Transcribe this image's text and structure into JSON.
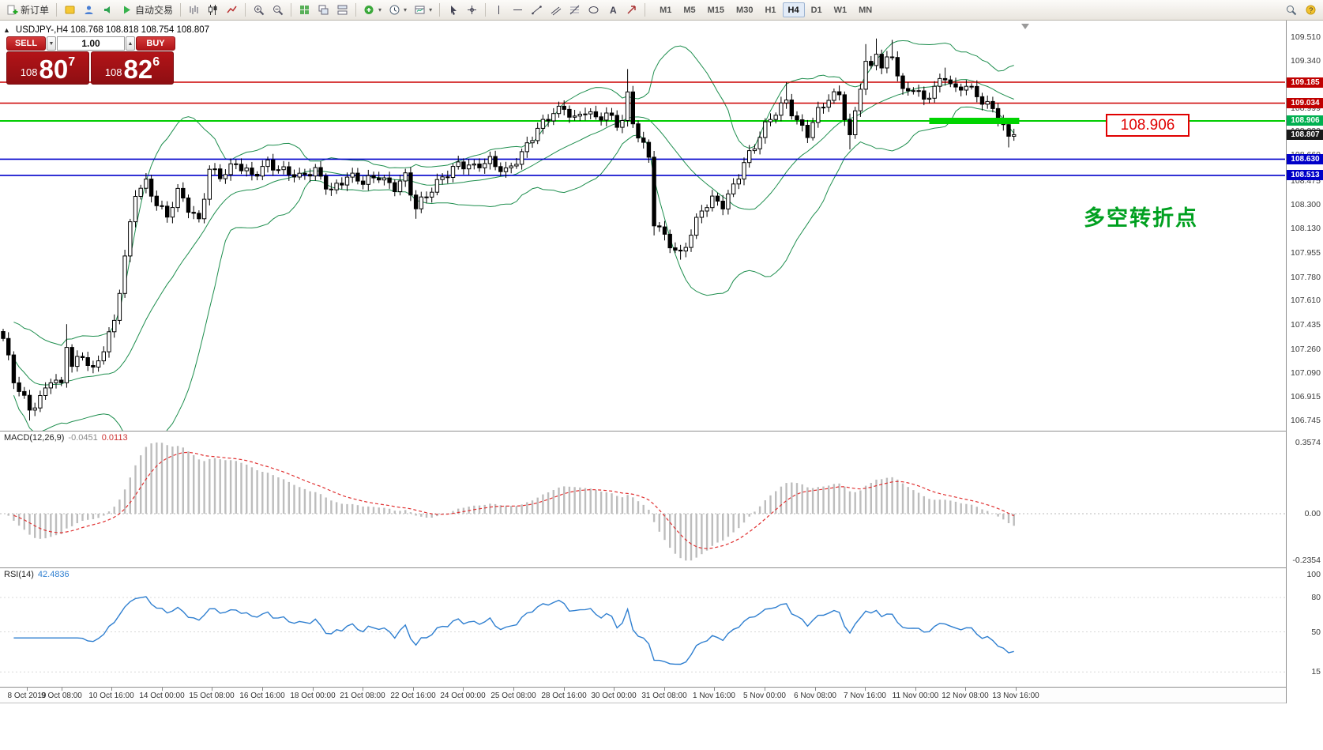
{
  "toolbar": {
    "caret": "▾",
    "buttons": [
      {
        "icon": "new-order",
        "label": "新订单",
        "name": "new-order-button"
      },
      {
        "sep": true
      },
      {
        "icon": "metaeditor",
        "name": "metaeditor-button"
      },
      {
        "icon": "community",
        "name": "community-button"
      },
      {
        "icon": "market",
        "name": "market-button"
      },
      {
        "icon": "autotrading",
        "label": "自动交易",
        "name": "autotrading-button"
      },
      {
        "sep": true
      },
      {
        "icon": "bars",
        "name": "bar-chart-button"
      },
      {
        "icon": "candles",
        "name": "candlestick-chart-button"
      },
      {
        "icon": "line",
        "name": "line-chart-button"
      },
      {
        "sep": true
      },
      {
        "icon": "zoom-in",
        "name": "zoom-in-button"
      },
      {
        "icon": "zoom-out",
        "name": "zoom-out-button"
      },
      {
        "sep": true
      },
      {
        "icon": "tile",
        "name": "tile-windows-button"
      },
      {
        "icon": "cascade",
        "name": "cascade-windows-button"
      },
      {
        "icon": "arrange",
        "name": "arrange-windows-button"
      },
      {
        "sep": true
      },
      {
        "icon": "indicators",
        "caret": true,
        "name": "indicators-button"
      },
      {
        "icon": "periods",
        "caret": true,
        "name": "periods-button"
      },
      {
        "icon": "templates",
        "caret": true,
        "name": "templates-button"
      },
      {
        "sep": true
      },
      {
        "icon": "cursor",
        "name": "cursor-button"
      },
      {
        "icon": "crosshair",
        "name": "crosshair-button"
      },
      {
        "sep": true
      },
      {
        "icon": "vline",
        "name": "vertical-line-button"
      },
      {
        "icon": "hline",
        "name": "horizontal-line-button"
      },
      {
        "icon": "trendline",
        "name": "trendline-button"
      },
      {
        "icon": "channel",
        "name": "channel-button"
      },
      {
        "icon": "fibonacci",
        "name": "fibonacci-button"
      },
      {
        "icon": "shapes",
        "name": "shapes-button"
      },
      {
        "icon": "text",
        "name": "text-annotation-button"
      },
      {
        "icon": "arrows",
        "name": "arrows-button"
      },
      {
        "sep": true
      }
    ],
    "timeframes": [
      "M1",
      "M5",
      "M15",
      "M30",
      "H1",
      "H4",
      "D1",
      "W1",
      "MN"
    ],
    "active_timeframe": "H4",
    "right_icons": [
      {
        "icon": "search",
        "name": "search-button"
      },
      {
        "icon": "support",
        "name": "support-button"
      }
    ]
  },
  "chart": {
    "symbol": "USDJPY-",
    "timeframe": "H4",
    "info_line": "USDJPY-,H4 108.768 108.818 108.754 108.807",
    "toggle_glyph": "▲"
  },
  "trade_panel": {
    "sell_label": "SELL",
    "buy_label": "BUY",
    "volume": "1.00",
    "vol_down_glyph": "▼",
    "vol_up_glyph": "▲",
    "sell_price": {
      "small": "108",
      "big": "80",
      "sup": "7"
    },
    "buy_price": {
      "small": "108",
      "big": "82",
      "sup": "6"
    }
  },
  "levels": [
    {
      "price": 109.185,
      "color": "#cc0000",
      "w": 1.4
    },
    {
      "price": 109.034,
      "color": "#cc0000",
      "w": 1.4
    },
    {
      "price": 108.906,
      "color": "#00cc00",
      "w": 2
    },
    {
      "price": 108.63,
      "color": "#0000cc",
      "w": 1.6
    },
    {
      "price": 108.513,
      "color": "#0000cc",
      "w": 1.6
    }
  ],
  "annotations": {
    "price_note": "108.906",
    "cn_note": "多空转折点"
  },
  "price_scale": {
    "regular": [
      "109.510",
      "109.340",
      "109.170",
      "108.999",
      "108.830",
      "108.660",
      "108.475",
      "108.300",
      "108.130",
      "107.955",
      "107.780",
      "107.610",
      "107.435",
      "107.260",
      "107.090",
      "106.915",
      "106.745"
    ],
    "badges": [
      {
        "price": "109.185",
        "bg": "#c00000"
      },
      {
        "price": "109.034",
        "bg": "#c00000"
      },
      {
        "price": "108.906",
        "bg": "#00b050"
      },
      {
        "price": "108.807",
        "bg": "#1a1a1a"
      },
      {
        "price": "108.630",
        "bg": "#0000c8"
      },
      {
        "price": "108.513",
        "bg": "#0000c8"
      }
    ]
  },
  "macd": {
    "label": "MACD(12,26,9)",
    "value_main": "-0.0451",
    "value_signal": "0.0113",
    "scale": [
      "0.3574",
      "0.00",
      "-0.2354"
    ]
  },
  "rsi": {
    "label": "RSI(14)",
    "value": "42.4836",
    "scale": [
      "100",
      "80",
      "50",
      "15"
    ]
  },
  "time_axis": [
    "8 Oct 2019",
    "9 Oct 08:00",
    "10 Oct 16:00",
    "14 Oct 00:00",
    "15 Oct 08:00",
    "16 Oct 16:00",
    "18 Oct 00:00",
    "21 Oct 08:00",
    "22 Oct 16:00",
    "24 Oct 00:00",
    "25 Oct 08:00",
    "28 Oct 16:00",
    "30 Oct 00:00",
    "31 Oct 08:00",
    "1 Nov 16:00",
    "5 Nov 00:00",
    "6 Nov 08:00",
    "7 Nov 16:00",
    "11 Nov 00:00",
    "12 Nov 08:00",
    "13 Nov 16:00"
  ],
  "colors": {
    "bull": "#ffffff",
    "bear": "#000000",
    "candle_stroke": "#000000",
    "bollinger": "#1e8e4e",
    "macd_bar": "#bdbdbd",
    "macd_signal": "#e03030",
    "rsi_line": "#2f7fd0",
    "highlight_green": "#00d400",
    "sell_buy_red": "#b01418"
  },
  "chart_data": {
    "type": "candlestick",
    "symbol": "USDJPY",
    "timeframe": "H4",
    "n": 192,
    "last_close": 108.807,
    "price_top": 109.55,
    "price_bottom": 106.7,
    "close_waypoints": [
      [
        0,
        107.32
      ],
      [
        2,
        107.02
      ],
      [
        5,
        106.84
      ],
      [
        7,
        106.92
      ],
      [
        9,
        107.05
      ],
      [
        11,
        106.98
      ],
      [
        12,
        107.28
      ],
      [
        13,
        107.12
      ],
      [
        15,
        107.22
      ],
      [
        17,
        107.12
      ],
      [
        19,
        107.28
      ],
      [
        21,
        107.45
      ],
      [
        23,
        107.9
      ],
      [
        25,
        108.38
      ],
      [
        27,
        108.47
      ],
      [
        29,
        108.33
      ],
      [
        31,
        108.22
      ],
      [
        33,
        108.38
      ],
      [
        35,
        108.26
      ],
      [
        37,
        108.18
      ],
      [
        39,
        108.58
      ],
      [
        41,
        108.52
      ],
      [
        44,
        108.58
      ],
      [
        47,
        108.5
      ],
      [
        50,
        108.62
      ],
      [
        53,
        108.55
      ],
      [
        56,
        108.48
      ],
      [
        59,
        108.55
      ],
      [
        62,
        108.42
      ],
      [
        65,
        108.5
      ],
      [
        68,
        108.45
      ],
      [
        71,
        108.52
      ],
      [
        74,
        108.44
      ],
      [
        76,
        108.5
      ],
      [
        78,
        108.26
      ],
      [
        80,
        108.36
      ],
      [
        83,
        108.52
      ],
      [
        86,
        108.6
      ],
      [
        89,
        108.55
      ],
      [
        92,
        108.62
      ],
      [
        95,
        108.56
      ],
      [
        98,
        108.66
      ],
      [
        101,
        108.83
      ],
      [
        104,
        108.98
      ],
      [
        106,
        109.02
      ],
      [
        108,
        108.92
      ],
      [
        110,
        108.97
      ],
      [
        112,
        108.9
      ],
      [
        114,
        108.96
      ],
      [
        116,
        108.9
      ],
      [
        117,
        108.94
      ],
      [
        118,
        109.1
      ],
      [
        119,
        108.9
      ],
      [
        120,
        108.8
      ],
      [
        122,
        108.62
      ],
      [
        123,
        108.16
      ],
      [
        125,
        108.07
      ],
      [
        127,
        107.99
      ],
      [
        128,
        107.96
      ],
      [
        130,
        108.1
      ],
      [
        132,
        108.25
      ],
      [
        134,
        108.32
      ],
      [
        136,
        108.3
      ],
      [
        138,
        108.45
      ],
      [
        140,
        108.62
      ],
      [
        142,
        108.72
      ],
      [
        144,
        108.85
      ],
      [
        146,
        108.96
      ],
      [
        148,
        109.06
      ],
      [
        150,
        108.92
      ],
      [
        152,
        108.82
      ],
      [
        154,
        108.96
      ],
      [
        156,
        109.05
      ],
      [
        158,
        109.1
      ],
      [
        160,
        108.8
      ],
      [
        162,
        109.18
      ],
      [
        163,
        109.33
      ],
      [
        164,
        109.28
      ],
      [
        165,
        109.4
      ],
      [
        166,
        109.27
      ],
      [
        167,
        109.32
      ],
      [
        168,
        109.37
      ],
      [
        170,
        109.12
      ],
      [
        172,
        109.17
      ],
      [
        174,
        109.06
      ],
      [
        176,
        109.13
      ],
      [
        178,
        109.21
      ],
      [
        180,
        109.12
      ],
      [
        182,
        109.19
      ],
      [
        184,
        109.1
      ],
      [
        186,
        109.02
      ],
      [
        188,
        108.92
      ],
      [
        189,
        108.85
      ],
      [
        190,
        108.76
      ],
      [
        191,
        108.807
      ]
    ],
    "high_overrides": [
      [
        12,
        107.44
      ],
      [
        118,
        109.28
      ],
      [
        148,
        109.185
      ],
      [
        163,
        109.46
      ],
      [
        165,
        109.5
      ],
      [
        168,
        109.49
      ],
      [
        178,
        109.29
      ]
    ],
    "low_overrides": [
      [
        5,
        106.745
      ],
      [
        78,
        108.2
      ],
      [
        123,
        108.08
      ],
      [
        128,
        107.905
      ],
      [
        160,
        108.7
      ],
      [
        190,
        108.715
      ]
    ],
    "highlight_segment": {
      "price": 108.906,
      "from_index": 175,
      "to_index": 192
    }
  }
}
